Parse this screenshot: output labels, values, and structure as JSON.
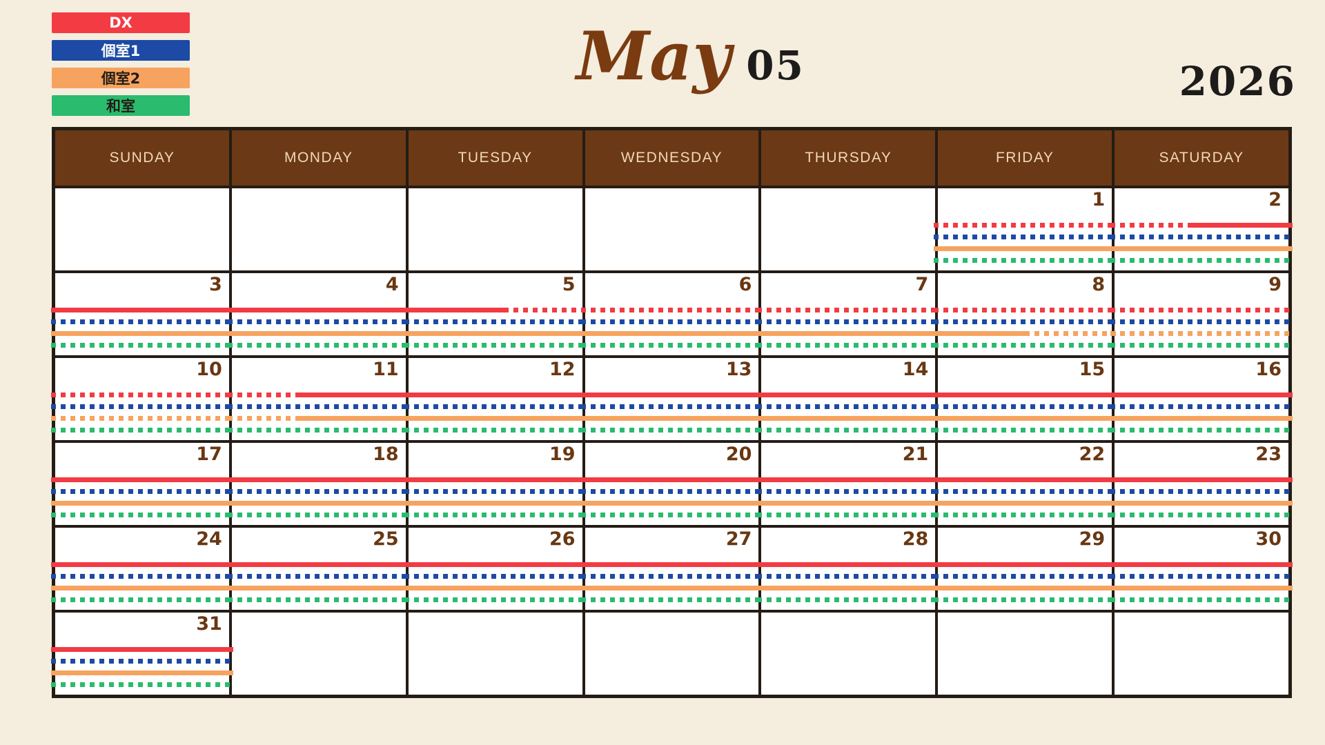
{
  "page": {
    "background": "#f5edde"
  },
  "legend": [
    {
      "label": "DX",
      "color": "#f23b43",
      "text_color": "#ffffff"
    },
    {
      "label": "個室1",
      "color": "#1c4aa5",
      "text_color": "#ffffff"
    },
    {
      "label": "個室2",
      "color": "#f6a35f",
      "text_color": "#231c15"
    },
    {
      "label": "和室",
      "color": "#2abb6e",
      "text_color": "#231c15"
    }
  ],
  "header": {
    "month_script": "May",
    "month_number": "05",
    "year": "2026"
  },
  "calendar": {
    "day_headers": [
      "SUNDAY",
      "MONDAY",
      "TUESDAY",
      "WEDNESDAY",
      "THURSDAY",
      "FRIDAY",
      "SATURDAY"
    ],
    "header_bg": "#6b3915",
    "header_text_color": "#f2d8b8",
    "grid_border_color": "#241c15",
    "line_order": [
      "DX",
      "個室1",
      "個室2",
      "和室"
    ],
    "line_colors": [
      "#f23b43",
      "#1c4aa5",
      "#f6a35f",
      "#2abb6e"
    ],
    "weeks": [
      [
        null,
        null,
        null,
        null,
        null,
        {
          "day": "1",
          "lines": [
            [
              [
                "dotted",
                0,
                100
              ]
            ],
            [
              [
                "dotted",
                0,
                100
              ]
            ],
            [
              [
                "solid",
                0,
                100
              ]
            ],
            [
              [
                "dotted",
                0,
                100
              ]
            ]
          ]
        },
        {
          "day": "2",
          "lines": [
            [
              [
                "dotted",
                0,
                45
              ],
              [
                "solid",
                45,
                100
              ]
            ],
            [
              [
                "dotted",
                0,
                100
              ]
            ],
            [
              [
                "solid",
                0,
                100
              ]
            ],
            [
              [
                "dotted",
                0,
                100
              ]
            ]
          ]
        }
      ],
      [
        {
          "day": "3",
          "lines": [
            [
              [
                "solid",
                0,
                100
              ]
            ],
            [
              [
                "dotted",
                0,
                100
              ]
            ],
            [
              [
                "solid",
                0,
                100
              ]
            ],
            [
              [
                "dotted",
                0,
                100
              ]
            ]
          ]
        },
        {
          "day": "4",
          "lines": [
            [
              [
                "solid",
                0,
                100
              ]
            ],
            [
              [
                "dotted",
                0,
                100
              ]
            ],
            [
              [
                "solid",
                0,
                100
              ]
            ],
            [
              [
                "dotted",
                0,
                100
              ]
            ]
          ]
        },
        {
          "day": "5",
          "lines": [
            [
              [
                "solid",
                0,
                55
              ],
              [
                "dotted",
                55,
                100
              ]
            ],
            [
              [
                "dotted",
                0,
                100
              ]
            ],
            [
              [
                "solid",
                0,
                100
              ]
            ],
            [
              [
                "dotted",
                0,
                100
              ]
            ]
          ]
        },
        {
          "day": "6",
          "lines": [
            [
              [
                "dotted",
                0,
                100
              ]
            ],
            [
              [
                "dotted",
                0,
                100
              ]
            ],
            [
              [
                "solid",
                0,
                100
              ]
            ],
            [
              [
                "dotted",
                0,
                100
              ]
            ]
          ]
        },
        {
          "day": "7",
          "lines": [
            [
              [
                "dotted",
                0,
                100
              ]
            ],
            [
              [
                "dotted",
                0,
                100
              ]
            ],
            [
              [
                "solid",
                0,
                100
              ]
            ],
            [
              [
                "dotted",
                0,
                100
              ]
            ]
          ]
        },
        {
          "day": "8",
          "lines": [
            [
              [
                "dotted",
                0,
                100
              ]
            ],
            [
              [
                "dotted",
                0,
                100
              ]
            ],
            [
              [
                "solid",
                0,
                50
              ],
              [
                "dotted",
                50,
                100
              ]
            ],
            [
              [
                "dotted",
                0,
                100
              ]
            ]
          ]
        },
        {
          "day": "9",
          "lines": [
            [
              [
                "dotted",
                0,
                100
              ]
            ],
            [
              [
                "dotted",
                0,
                100
              ]
            ],
            [
              [
                "dotted",
                0,
                100
              ]
            ],
            [
              [
                "dotted",
                0,
                100
              ]
            ]
          ]
        }
      ],
      [
        {
          "day": "10",
          "lines": [
            [
              [
                "dotted",
                0,
                100
              ]
            ],
            [
              [
                "dotted",
                0,
                100
              ]
            ],
            [
              [
                "dotted",
                0,
                100
              ]
            ],
            [
              [
                "dotted",
                0,
                100
              ]
            ]
          ]
        },
        {
          "day": "11",
          "lines": [
            [
              [
                "dotted",
                0,
                38
              ],
              [
                "solid",
                38,
                100
              ]
            ],
            [
              [
                "dotted",
                0,
                100
              ]
            ],
            [
              [
                "dotted",
                0,
                38
              ],
              [
                "solid",
                38,
                100
              ]
            ],
            [
              [
                "dotted",
                0,
                100
              ]
            ]
          ]
        },
        {
          "day": "12",
          "lines": [
            [
              [
                "solid",
                0,
                100
              ]
            ],
            [
              [
                "dotted",
                0,
                100
              ]
            ],
            [
              [
                "solid",
                0,
                100
              ]
            ],
            [
              [
                "dotted",
                0,
                100
              ]
            ]
          ]
        },
        {
          "day": "13",
          "lines": [
            [
              [
                "solid",
                0,
                100
              ]
            ],
            [
              [
                "dotted",
                0,
                100
              ]
            ],
            [
              [
                "solid",
                0,
                100
              ]
            ],
            [
              [
                "dotted",
                0,
                100
              ]
            ]
          ]
        },
        {
          "day": "14",
          "lines": [
            [
              [
                "solid",
                0,
                100
              ]
            ],
            [
              [
                "dotted",
                0,
                100
              ]
            ],
            [
              [
                "solid",
                0,
                100
              ]
            ],
            [
              [
                "dotted",
                0,
                100
              ]
            ]
          ]
        },
        {
          "day": "15",
          "lines": [
            [
              [
                "solid",
                0,
                100
              ]
            ],
            [
              [
                "dotted",
                0,
                100
              ]
            ],
            [
              [
                "solid",
                0,
                100
              ]
            ],
            [
              [
                "dotted",
                0,
                100
              ]
            ]
          ]
        },
        {
          "day": "16",
          "lines": [
            [
              [
                "solid",
                0,
                100
              ]
            ],
            [
              [
                "dotted",
                0,
                100
              ]
            ],
            [
              [
                "solid",
                0,
                100
              ]
            ],
            [
              [
                "dotted",
                0,
                100
              ]
            ]
          ]
        }
      ],
      [
        {
          "day": "17",
          "lines": [
            [
              [
                "solid",
                0,
                100
              ]
            ],
            [
              [
                "dotted",
                0,
                100
              ]
            ],
            [
              [
                "solid",
                0,
                100
              ]
            ],
            [
              [
                "dotted",
                0,
                100
              ]
            ]
          ]
        },
        {
          "day": "18",
          "lines": [
            [
              [
                "solid",
                0,
                100
              ]
            ],
            [
              [
                "dotted",
                0,
                100
              ]
            ],
            [
              [
                "solid",
                0,
                100
              ]
            ],
            [
              [
                "dotted",
                0,
                100
              ]
            ]
          ]
        },
        {
          "day": "19",
          "lines": [
            [
              [
                "solid",
                0,
                100
              ]
            ],
            [
              [
                "dotted",
                0,
                100
              ]
            ],
            [
              [
                "solid",
                0,
                100
              ]
            ],
            [
              [
                "dotted",
                0,
                100
              ]
            ]
          ]
        },
        {
          "day": "20",
          "lines": [
            [
              [
                "solid",
                0,
                100
              ]
            ],
            [
              [
                "dotted",
                0,
                100
              ]
            ],
            [
              [
                "solid",
                0,
                100
              ]
            ],
            [
              [
                "dotted",
                0,
                100
              ]
            ]
          ]
        },
        {
          "day": "21",
          "lines": [
            [
              [
                "solid",
                0,
                100
              ]
            ],
            [
              [
                "dotted",
                0,
                100
              ]
            ],
            [
              [
                "solid",
                0,
                100
              ]
            ],
            [
              [
                "dotted",
                0,
                100
              ]
            ]
          ]
        },
        {
          "day": "22",
          "lines": [
            [
              [
                "solid",
                0,
                100
              ]
            ],
            [
              [
                "dotted",
                0,
                100
              ]
            ],
            [
              [
                "solid",
                0,
                100
              ]
            ],
            [
              [
                "dotted",
                0,
                100
              ]
            ]
          ]
        },
        {
          "day": "23",
          "lines": [
            [
              [
                "solid",
                0,
                100
              ]
            ],
            [
              [
                "dotted",
                0,
                100
              ]
            ],
            [
              [
                "solid",
                0,
                100
              ]
            ],
            [
              [
                "dotted",
                0,
                100
              ]
            ]
          ]
        }
      ],
      [
        {
          "day": "24",
          "lines": [
            [
              [
                "solid",
                0,
                100
              ]
            ],
            [
              [
                "dotted",
                0,
                100
              ]
            ],
            [
              [
                "solid",
                0,
                100
              ]
            ],
            [
              [
                "dotted",
                0,
                100
              ]
            ]
          ]
        },
        {
          "day": "25",
          "lines": [
            [
              [
                "solid",
                0,
                100
              ]
            ],
            [
              [
                "dotted",
                0,
                100
              ]
            ],
            [
              [
                "solid",
                0,
                100
              ]
            ],
            [
              [
                "dotted",
                0,
                100
              ]
            ]
          ]
        },
        {
          "day": "26",
          "lines": [
            [
              [
                "solid",
                0,
                100
              ]
            ],
            [
              [
                "dotted",
                0,
                100
              ]
            ],
            [
              [
                "solid",
                0,
                100
              ]
            ],
            [
              [
                "dotted",
                0,
                100
              ]
            ]
          ]
        },
        {
          "day": "27",
          "lines": [
            [
              [
                "solid",
                0,
                100
              ]
            ],
            [
              [
                "dotted",
                0,
                100
              ]
            ],
            [
              [
                "solid",
                0,
                100
              ]
            ],
            [
              [
                "dotted",
                0,
                100
              ]
            ]
          ]
        },
        {
          "day": "28",
          "lines": [
            [
              [
                "solid",
                0,
                100
              ]
            ],
            [
              [
                "dotted",
                0,
                100
              ]
            ],
            [
              [
                "solid",
                0,
                100
              ]
            ],
            [
              [
                "dotted",
                0,
                100
              ]
            ]
          ]
        },
        {
          "day": "29",
          "lines": [
            [
              [
                "solid",
                0,
                100
              ]
            ],
            [
              [
                "dotted",
                0,
                100
              ]
            ],
            [
              [
                "solid",
                0,
                100
              ]
            ],
            [
              [
                "dotted",
                0,
                100
              ]
            ]
          ]
        },
        {
          "day": "30",
          "lines": [
            [
              [
                "solid",
                0,
                100
              ]
            ],
            [
              [
                "dotted",
                0,
                100
              ]
            ],
            [
              [
                "solid",
                0,
                100
              ]
            ],
            [
              [
                "dotted",
                0,
                100
              ]
            ]
          ]
        }
      ],
      [
        {
          "day": "31",
          "lines": [
            [
              [
                "solid",
                0,
                100
              ]
            ],
            [
              [
                "dotted",
                0,
                100
              ]
            ],
            [
              [
                "solid",
                0,
                100
              ]
            ],
            [
              [
                "dotted",
                0,
                100
              ]
            ]
          ]
        },
        null,
        null,
        null,
        null,
        null,
        null
      ]
    ]
  }
}
